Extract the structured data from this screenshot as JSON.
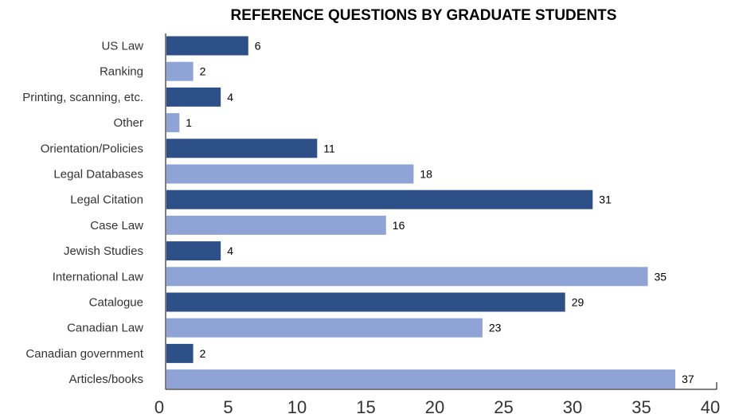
{
  "chart_data": {
    "type": "bar",
    "orientation": "horizontal",
    "title": "REFERENCE QUESTIONS BY GRADUATE STUDENTS",
    "xlabel": "",
    "ylabel": "",
    "xlim": [
      0,
      40
    ],
    "x_ticks": [
      0,
      5,
      10,
      15,
      20,
      25,
      30,
      35,
      40
    ],
    "grid": false,
    "legend": "none",
    "colors": {
      "dark": "#2e5088",
      "light": "#8fa3d6"
    },
    "categories": [
      "US Law",
      "Ranking",
      "Printing, scanning, etc.",
      "Other",
      "Orientation/Policies",
      "Legal Databases",
      "Legal Citation",
      "Case Law",
      "Jewish Studies",
      "International Law",
      "Catalogue",
      "Canadian Law",
      "Canadian government",
      "Articles/books"
    ],
    "values": [
      6,
      2,
      4,
      1,
      11,
      18,
      31,
      16,
      4,
      35,
      29,
      23,
      2,
      37
    ],
    "bar_colors": [
      "dark",
      "light",
      "dark",
      "light",
      "dark",
      "light",
      "dark",
      "light",
      "dark",
      "light",
      "dark",
      "light",
      "dark",
      "light"
    ]
  }
}
